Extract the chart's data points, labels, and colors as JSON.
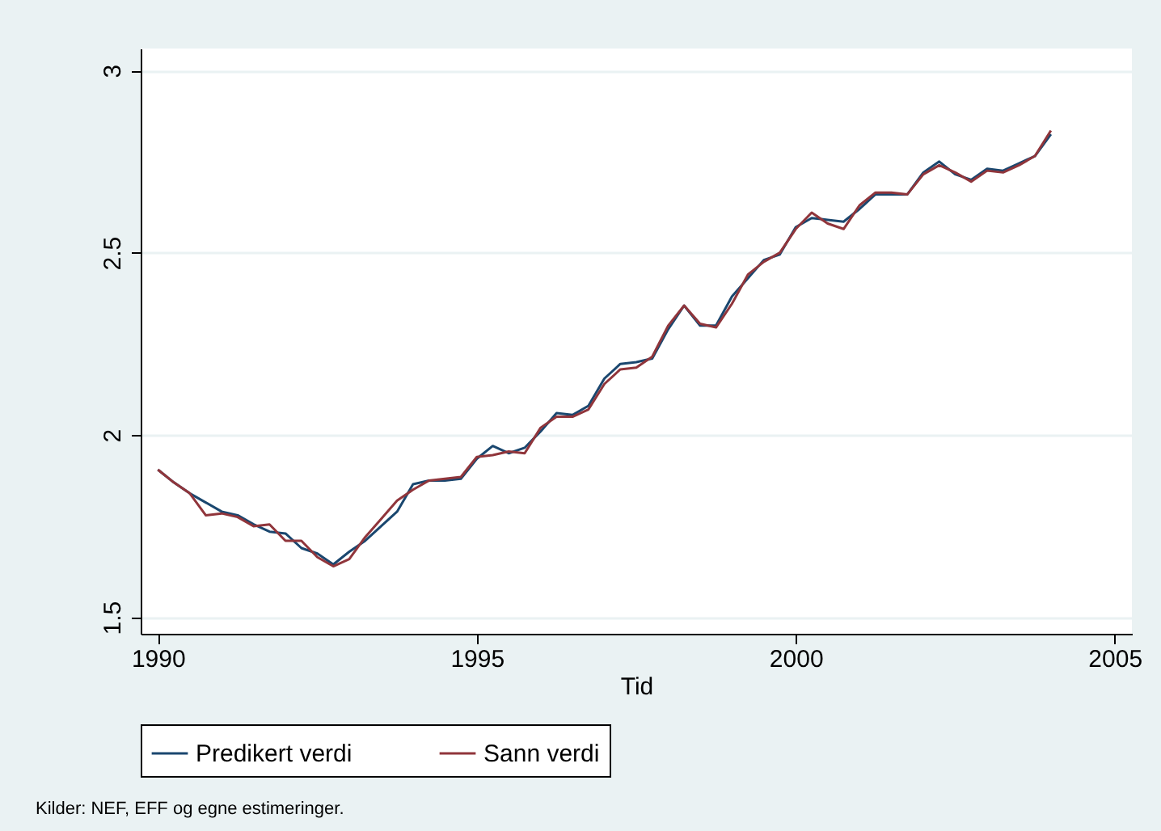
{
  "chart_data": {
    "type": "line",
    "xlabel": "Tid",
    "x": [
      1990,
      1990.25,
      1990.5,
      1990.75,
      1991,
      1991.25,
      1991.5,
      1991.75,
      1992,
      1992.25,
      1992.5,
      1992.75,
      1993,
      1993.25,
      1993.5,
      1993.75,
      1994,
      1994.25,
      1994.5,
      1994.75,
      1995,
      1995.25,
      1995.5,
      1995.75,
      1996,
      1996.25,
      1996.5,
      1996.75,
      1997,
      1997.25,
      1997.5,
      1997.75,
      1998,
      1998.25,
      1998.5,
      1998.75,
      1999,
      1999.25,
      1999.5,
      1999.75,
      2000,
      2000.25,
      2000.5,
      2000.75,
      2001,
      2001.25,
      2001.5,
      2001.75,
      2002,
      2002.25,
      2002.5,
      2002.75,
      2003,
      2003.25,
      2003.5,
      2003.75,
      2004
    ],
    "series": [
      {
        "name": "Predikert verdi",
        "color": "#1a476f",
        "values": [
          1.905,
          1.87,
          1.84,
          1.815,
          1.79,
          1.78,
          1.755,
          1.735,
          1.73,
          1.69,
          1.675,
          1.645,
          1.68,
          1.71,
          1.75,
          1.79,
          1.865,
          1.875,
          1.875,
          1.88,
          1.935,
          1.97,
          1.95,
          1.965,
          2.01,
          2.06,
          2.055,
          2.08,
          2.155,
          2.195,
          2.2,
          2.21,
          2.29,
          2.355,
          2.3,
          2.3,
          2.38,
          2.43,
          2.48,
          2.495,
          2.57,
          2.595,
          2.59,
          2.585,
          2.62,
          2.66,
          2.66,
          2.66,
          2.72,
          2.75,
          2.715,
          2.7,
          2.73,
          2.725,
          2.745,
          2.765,
          2.825
        ]
      },
      {
        "name": "Sann verdi",
        "color": "#90353b",
        "values": [
          1.905,
          1.87,
          1.84,
          1.78,
          1.785,
          1.775,
          1.75,
          1.755,
          1.71,
          1.71,
          1.665,
          1.64,
          1.66,
          1.72,
          1.77,
          1.82,
          1.85,
          1.875,
          1.88,
          1.885,
          1.94,
          1.945,
          1.955,
          1.95,
          2.02,
          2.05,
          2.05,
          2.07,
          2.14,
          2.18,
          2.185,
          2.215,
          2.3,
          2.355,
          2.305,
          2.295,
          2.36,
          2.44,
          2.475,
          2.5,
          2.565,
          2.61,
          2.58,
          2.565,
          2.63,
          2.665,
          2.665,
          2.66,
          2.715,
          2.74,
          2.72,
          2.695,
          2.725,
          2.72,
          2.74,
          2.765,
          2.835
        ]
      }
    ],
    "xlim": [
      1989.73,
      2005.27
    ],
    "xticks": [
      1990,
      1995,
      2000,
      2005
    ],
    "ylim": [
      1.455,
      3.06
    ],
    "yticks": [
      1.5,
      2,
      2.5,
      3
    ],
    "grid": "y",
    "legend": "bottom",
    "marker": "none",
    "line_style": "solid",
    "annotations": [
      "Kilder: NEF, EFF og egne estimeringer."
    ]
  }
}
